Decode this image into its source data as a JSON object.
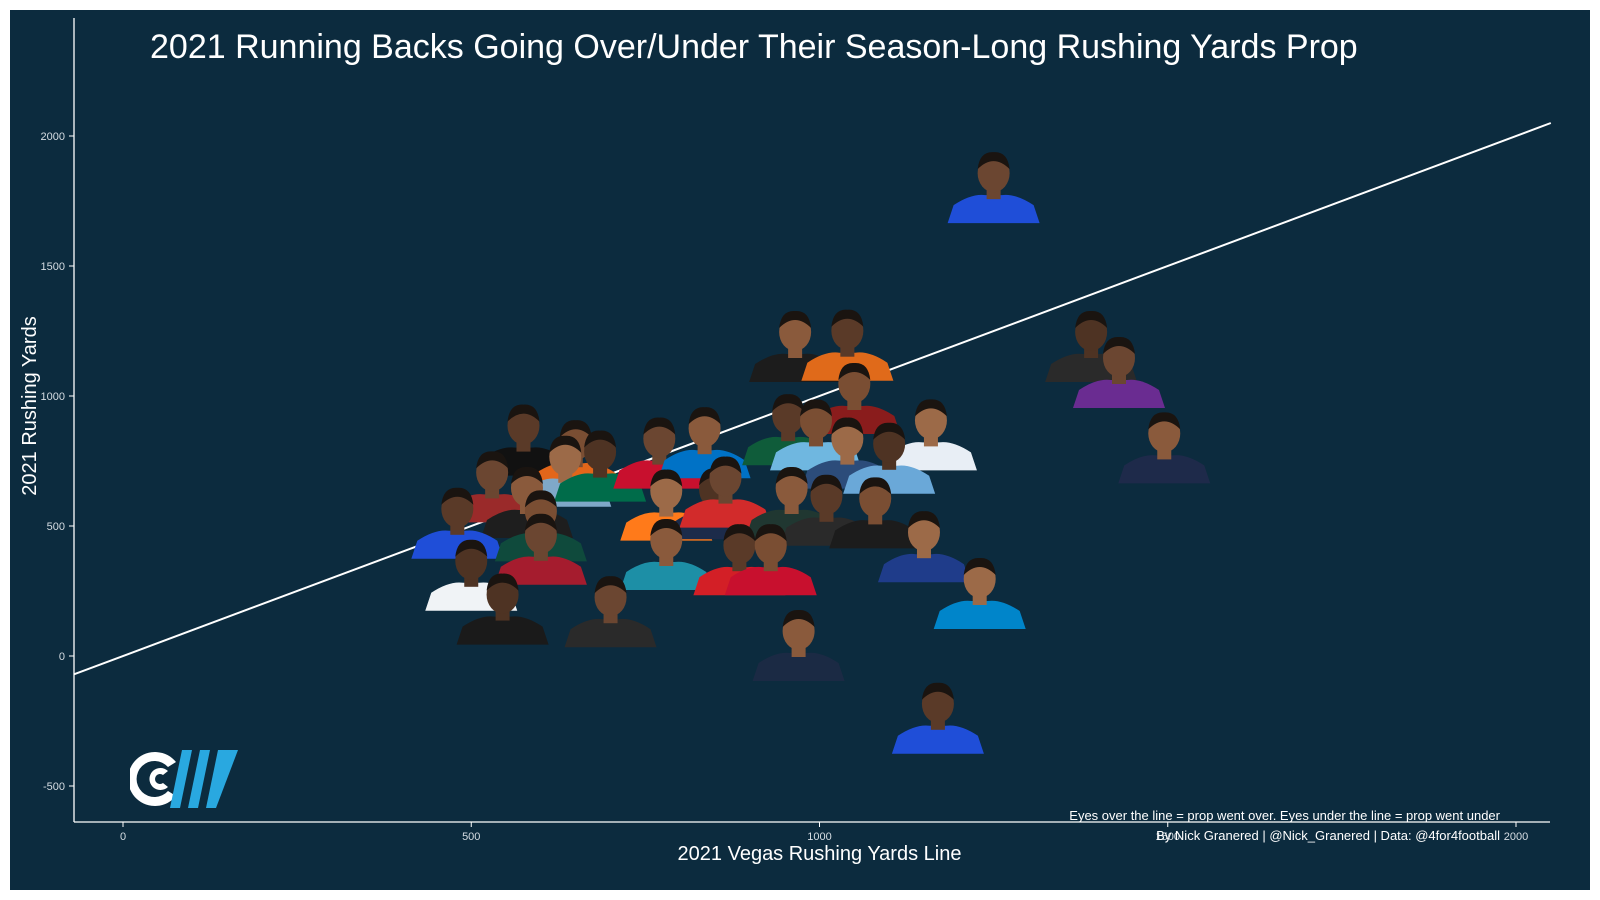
{
  "chart_data": {
    "type": "scatter",
    "title": "2021 Running Backs Going Over/Under Their Season-Long Rushing Yards Prop",
    "xlabel": "2021 Vegas Rushing Yards Line",
    "ylabel": "2021 Rushing Yards",
    "xlim": [
      -70,
      2050
    ],
    "ylim": [
      -640,
      2400
    ],
    "xticks": [
      "0",
      "500",
      "1000",
      "1500",
      "2000"
    ],
    "yticks": [
      "-500",
      "0",
      "500",
      "1000",
      "1500",
      "2000"
    ],
    "grid": false,
    "reference_line": {
      "x": [
        -70,
        2050
      ],
      "y": [
        -70,
        2050
      ]
    },
    "x": [
      1250,
      965,
      1040,
      1050,
      1160,
      1390,
      1430,
      1495,
      575,
      650,
      635,
      685,
      770,
      835,
      955,
      995,
      1040,
      1100,
      530,
      580,
      480,
      600,
      780,
      850,
      865,
      960,
      1010,
      1080,
      1150,
      500,
      600,
      780,
      885,
      930,
      1230,
      545,
      700,
      970,
      1170
    ],
    "y": [
      1811,
      1200,
      1205,
      1000,
      860,
      1200,
      1100,
      810,
      840,
      780,
      720,
      740,
      790,
      830,
      880,
      860,
      790,
      770,
      660,
      600,
      520,
      510,
      590,
      595,
      640,
      600,
      570,
      560,
      430,
      320,
      420,
      400,
      380,
      380,
      250,
      190,
      180,
      50,
      -230
    ],
    "caption": [
      "Eyes over the line = prop went over. Eyes under the line = prop went under",
      "By Nick Granered | @Nick_Granered | Data: @4for4football"
    ],
    "colors": {
      "background": "#0c2b3e",
      "line": "#ffffff",
      "text": "#ffffff",
      "jerseys": [
        "#1f4ed8",
        "#1c1c1c",
        "#e06a1a",
        "#8a1c1c",
        "#e8eef5",
        "#2a2a2a",
        "#6a2c91",
        "#1e2a4a",
        "#111111",
        "#e2661a",
        "#7fa8c8",
        "#006c4a",
        "#c8102e",
        "#0072c6",
        "#0f5c3a",
        "#6fb7e0",
        "#2c4c7a",
        "#6aa8d8",
        "#9a2a2a",
        "#1e1e1e",
        "#1f4ed8",
        "#0f4a3c",
        "#ff7a1a",
        "#1c2b4a",
        "#d22b2b",
        "#203731",
        "#2a2a2a",
        "#1c1c1c",
        "#1f3c8a",
        "#f0f3f6",
        "#a51c2e",
        "#1d8fa6",
        "#d31f26",
        "#c8102e",
        "#0085ca",
        "#1a1a1a",
        "#2a2a2a",
        "#1b2a44",
        "#1f4ed8"
      ]
    }
  }
}
